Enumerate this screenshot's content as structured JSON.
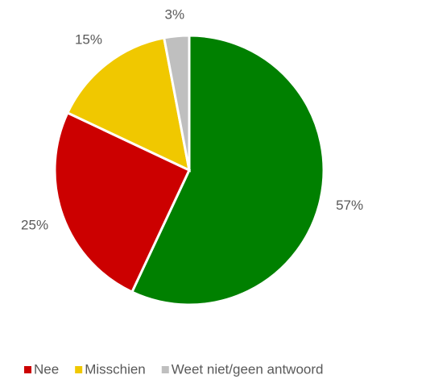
{
  "chart_data": {
    "type": "pie",
    "categories": [
      null,
      "Nee",
      "Misschien",
      "Weet niet/geen antwoord"
    ],
    "values": [
      57,
      25,
      15,
      3
    ],
    "value_labels": [
      "57%",
      "25%",
      "15%",
      "3%"
    ],
    "colors": [
      "#008000",
      "#cc0000",
      "#f0c800",
      "#bfbfbf"
    ],
    "legend": "bottom"
  }
}
